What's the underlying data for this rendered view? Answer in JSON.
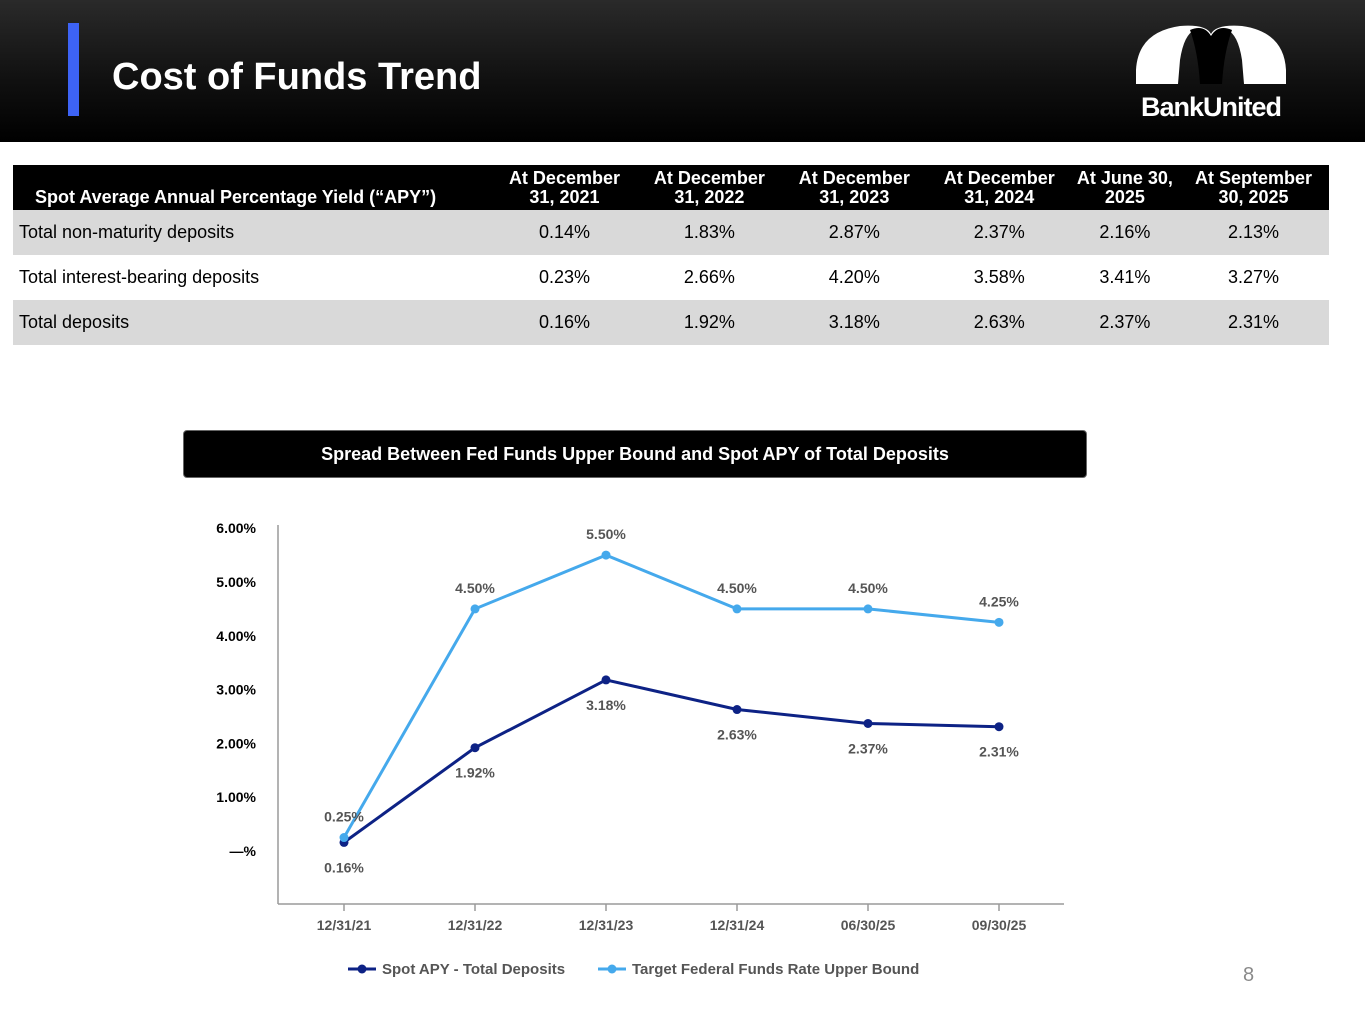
{
  "header": {
    "title": "Cost of Funds Trend",
    "logo_text": "BankUnited"
  },
  "table": {
    "columns": [
      "Spot Average Annual Percentage Yield (“APY”)",
      "At December 31, 2021",
      "At December 31, 2022",
      "At December 31, 2023",
      "At December 31, 2024",
      "At June 30, 2025",
      "At September 30, 2025"
    ],
    "rows": [
      {
        "label": "Total non-maturity deposits",
        "values": [
          "0.14%",
          "1.83%",
          "2.87%",
          "2.37%",
          "2.16%",
          "2.13%"
        ]
      },
      {
        "label": "Total interest-bearing deposits",
        "values": [
          "0.23%",
          "2.66%",
          "4.20%",
          "3.58%",
          "3.41%",
          "3.27%"
        ]
      },
      {
        "label": "Total deposits",
        "values": [
          "0.16%",
          "1.92%",
          "3.18%",
          "2.63%",
          "2.37%",
          "2.31%"
        ]
      }
    ]
  },
  "chart_banner": "Spread Between Fed Funds Upper Bound and Spot APY of Total Deposits",
  "chart_data": {
    "type": "line",
    "title": "Spread Between Fed Funds Upper Bound and Spot APY of Total Deposits",
    "categories": [
      "12/31/21",
      "12/31/22",
      "12/31/23",
      "12/31/24",
      "06/30/25",
      "09/30/25"
    ],
    "ylim": [
      -1,
      6
    ],
    "yticks": [
      0,
      1,
      2,
      3,
      4,
      5,
      6
    ],
    "ytick_labels": [
      "—%",
      "1.00%",
      "2.00%",
      "3.00%",
      "4.00%",
      "5.00%",
      "6.00%"
    ],
    "legend_position": "bottom",
    "series": [
      {
        "name": "Spot APY - Total Deposits",
        "color": "#0d2285",
        "values": [
          0.16,
          1.92,
          3.18,
          2.63,
          2.37,
          2.31
        ],
        "labels": [
          "0.16%",
          "1.92%",
          "3.18%",
          "2.63%",
          "2.37%",
          "2.31%"
        ],
        "label_position": "below"
      },
      {
        "name": "Target Federal Funds Rate Upper Bound",
        "color": "#45a9ec",
        "values": [
          0.25,
          4.5,
          5.5,
          4.5,
          4.5,
          4.25
        ],
        "labels": [
          "0.25%",
          "4.50%",
          "5.50%",
          "4.50%",
          "4.50%",
          "4.25%"
        ],
        "label_position": "above"
      }
    ]
  },
  "page_number": "8"
}
